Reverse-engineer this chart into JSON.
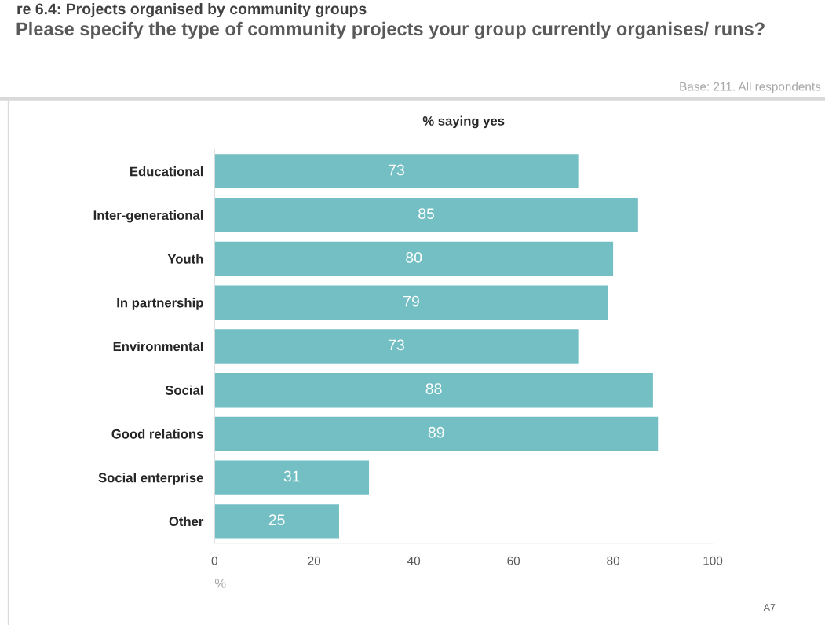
{
  "chart_data": {
    "type": "bar",
    "orientation": "horizontal",
    "title": "Please specify the type of community projects your group currently organises/ runs?",
    "subtitle": "% saying yes",
    "xlabel": "%",
    "annotations": [
      "re 6.4: Projects organised by community groups",
      "Base: 211. All respondents",
      "A7"
    ],
    "categories": [
      "Educational",
      "Inter-generational",
      "Youth",
      "In partnership",
      "Environmental",
      "Social",
      "Good relations",
      "Social enterprise",
      "Other"
    ],
    "values": [
      73,
      85,
      80,
      79,
      73,
      88,
      89,
      31,
      25
    ],
    "color": "#73bfc4",
    "xlim": [
      0,
      100
    ],
    "xticks": [
      0,
      20,
      40,
      60,
      80,
      100
    ],
    "data_labels": true,
    "grid": false,
    "legend": false
  }
}
